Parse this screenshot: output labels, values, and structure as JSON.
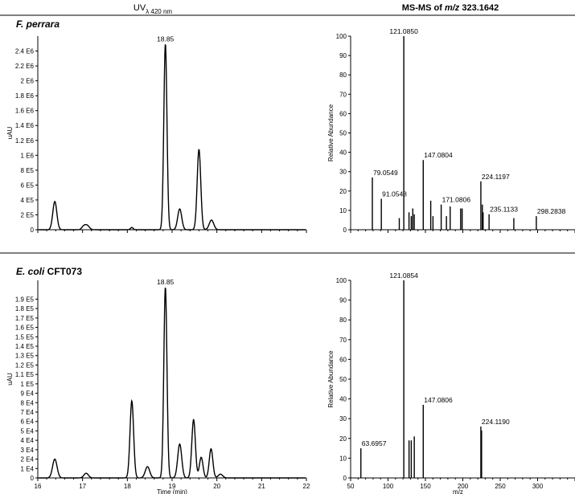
{
  "headers": {
    "uv_main": "UV",
    "uv_sub": "λ 420 nm",
    "ms_prefix": "MS-MS of ",
    "ms_mz": "m/z",
    "ms_value": " 323.1642"
  },
  "panels": [
    {
      "organism_italic": "F. perrara",
      "organism_plain": ""
    },
    {
      "organism_italic": "E. coli",
      "organism_plain": " CFT073"
    }
  ],
  "chart_data": [
    {
      "id": "uv_top",
      "type": "line",
      "ylabel": "uAU",
      "xlabel": "",
      "xlim": [
        16,
        22
      ],
      "ylim": [
        0,
        2600000.0
      ],
      "y_ticks": [
        {
          "v": 0,
          "label": "0"
        },
        {
          "v": 200000,
          "label": "2 E5"
        },
        {
          "v": 400000,
          "label": "4 E5"
        },
        {
          "v": 600000,
          "label": "6 E5"
        },
        {
          "v": 800000,
          "label": "8 E5"
        },
        {
          "v": 1000000,
          "label": "1 E6"
        },
        {
          "v": 1200000,
          "label": "1.2 E6"
        },
        {
          "v": 1400000,
          "label": "1.4 E6"
        },
        {
          "v": 1600000,
          "label": "1.6 E6"
        },
        {
          "v": 1800000,
          "label": "1.8 E6"
        },
        {
          "v": 2000000,
          "label": "2 E6"
        },
        {
          "v": 2200000,
          "label": "2.2 E6"
        },
        {
          "v": 2400000,
          "label": "2.4 E6"
        }
      ],
      "x_ticks": [],
      "peaks": [
        {
          "rt": 16.38,
          "height": 380000,
          "width": 0.045
        },
        {
          "rt": 17.02,
          "height": 40000,
          "width": 0.04
        },
        {
          "rt": 17.1,
          "height": 60000,
          "width": 0.05
        },
        {
          "rt": 18.1,
          "height": 30000,
          "width": 0.03
        },
        {
          "rt": 18.85,
          "height": 2500000,
          "width": 0.035
        },
        {
          "rt": 19.17,
          "height": 280000,
          "width": 0.045
        },
        {
          "rt": 19.6,
          "height": 1080000,
          "width": 0.04
        },
        {
          "rt": 19.88,
          "height": 130000,
          "width": 0.05
        }
      ],
      "peak_labels": [
        {
          "x": 18.85,
          "y": 2500000,
          "label": "18.85"
        }
      ]
    },
    {
      "id": "ms_top",
      "type": "bar",
      "ylabel": "Relative Abundance",
      "xlabel": "",
      "xlim": [
        50,
        350
      ],
      "ylim": [
        0,
        100
      ],
      "y_ticks": [
        {
          "v": 0,
          "label": "0"
        },
        {
          "v": 10,
          "label": "10"
        },
        {
          "v": 20,
          "label": "20"
        },
        {
          "v": 30,
          "label": "30"
        },
        {
          "v": 40,
          "label": "40"
        },
        {
          "v": 50,
          "label": "50"
        },
        {
          "v": 60,
          "label": "60"
        },
        {
          "v": 70,
          "label": "70"
        },
        {
          "v": 80,
          "label": "80"
        },
        {
          "v": 90,
          "label": "90"
        },
        {
          "v": 100,
          "label": "100"
        }
      ],
      "x_ticks": [],
      "peaks": [
        {
          "mz": 79.05,
          "int": 27
        },
        {
          "mz": 91.05,
          "int": 16
        },
        {
          "mz": 115.05,
          "int": 6
        },
        {
          "mz": 121.09,
          "int": 100
        },
        {
          "mz": 128.06,
          "int": 9
        },
        {
          "mz": 131.07,
          "int": 7
        },
        {
          "mz": 133.1,
          "int": 11
        },
        {
          "mz": 135.08,
          "int": 8
        },
        {
          "mz": 147.08,
          "int": 36
        },
        {
          "mz": 157.1,
          "int": 15
        },
        {
          "mz": 160.1,
          "int": 7
        },
        {
          "mz": 171.08,
          "int": 13
        },
        {
          "mz": 178.1,
          "int": 7
        },
        {
          "mz": 183.1,
          "int": 12
        },
        {
          "mz": 197.1,
          "int": 11
        },
        {
          "mz": 199.1,
          "int": 11
        },
        {
          "mz": 224.12,
          "int": 25
        },
        {
          "mz": 226.1,
          "int": 13
        },
        {
          "mz": 227.1,
          "int": 9
        },
        {
          "mz": 235.11,
          "int": 8
        },
        {
          "mz": 268.2,
          "int": 6
        },
        {
          "mz": 298.28,
          "int": 7
        }
      ],
      "peak_labels": [
        {
          "x": 121.09,
          "y": 100,
          "label": "121.0850"
        },
        {
          "x": 79.05,
          "y": 27,
          "label": "79.0549"
        },
        {
          "x": 91.05,
          "y": 16,
          "label": "91.0548"
        },
        {
          "x": 147.08,
          "y": 36,
          "label": "147.0804"
        },
        {
          "x": 171.08,
          "y": 13,
          "label": "171.0806"
        },
        {
          "x": 224.12,
          "y": 25,
          "label": "224.1197"
        },
        {
          "x": 235.11,
          "y": 8,
          "label": "235.1133"
        },
        {
          "x": 298.28,
          "y": 7,
          "label": "298.2838"
        }
      ]
    },
    {
      "id": "uv_bottom",
      "type": "line",
      "ylabel": "uAU",
      "xlabel": "Time (min)",
      "xlim": [
        16,
        22
      ],
      "ylim": [
        0,
        210000
      ],
      "y_ticks": [
        {
          "v": 0,
          "label": "0"
        },
        {
          "v": 10000,
          "label": "1 E4"
        },
        {
          "v": 20000,
          "label": "2 E4"
        },
        {
          "v": 30000,
          "label": "3 E4"
        },
        {
          "v": 40000,
          "label": "4 E4"
        },
        {
          "v": 50000,
          "label": "5 E4"
        },
        {
          "v": 60000,
          "label": "6 E4"
        },
        {
          "v": 70000,
          "label": "7 E4"
        },
        {
          "v": 80000,
          "label": "8 E4"
        },
        {
          "v": 90000,
          "label": "9 E4"
        },
        {
          "v": 100000,
          "label": "1 E5"
        },
        {
          "v": 110000,
          "label": "1.1 E5"
        },
        {
          "v": 120000,
          "label": "1.2 E5"
        },
        {
          "v": 130000,
          "label": "1.3 E5"
        },
        {
          "v": 140000,
          "label": "1.4 E5"
        },
        {
          "v": 150000,
          "label": "1.5 E5"
        },
        {
          "v": 160000,
          "label": "1.6 E5"
        },
        {
          "v": 170000,
          "label": "1.7 E5"
        },
        {
          "v": 180000,
          "label": "1.8 E5"
        },
        {
          "v": 190000,
          "label": "1.9 E5"
        }
      ],
      "x_ticks": [
        {
          "v": 16,
          "label": "16"
        },
        {
          "v": 17,
          "label": "17"
        },
        {
          "v": 18,
          "label": "18"
        },
        {
          "v": 19,
          "label": "19"
        },
        {
          "v": 20,
          "label": "20"
        },
        {
          "v": 21,
          "label": "21"
        },
        {
          "v": 22,
          "label": "22"
        }
      ],
      "peaks": [
        {
          "rt": 16.38,
          "height": 20000,
          "width": 0.05
        },
        {
          "rt": 17.08,
          "height": 5000,
          "width": 0.05
        },
        {
          "rt": 18.1,
          "height": 82000,
          "width": 0.04
        },
        {
          "rt": 18.45,
          "height": 12000,
          "width": 0.05
        },
        {
          "rt": 18.85,
          "height": 203000,
          "width": 0.035
        },
        {
          "rt": 19.17,
          "height": 36000,
          "width": 0.045
        },
        {
          "rt": 19.48,
          "height": 62000,
          "width": 0.04
        },
        {
          "rt": 19.65,
          "height": 22000,
          "width": 0.04
        },
        {
          "rt": 19.87,
          "height": 31000,
          "width": 0.04
        },
        {
          "rt": 20.08,
          "height": 4000,
          "width": 0.05
        }
      ],
      "peak_labels": [
        {
          "x": 18.85,
          "y": 203000,
          "label": "18.85"
        }
      ]
    },
    {
      "id": "ms_bottom",
      "type": "bar",
      "ylabel": "Relative Abundance",
      "xlabel": "m/z",
      "xlim": [
        50,
        350
      ],
      "ylim": [
        0,
        100
      ],
      "y_ticks": [
        {
          "v": 0,
          "label": "0"
        },
        {
          "v": 10,
          "label": "10"
        },
        {
          "v": 20,
          "label": "20"
        },
        {
          "v": 30,
          "label": "30"
        },
        {
          "v": 40,
          "label": "40"
        },
        {
          "v": 50,
          "label": "50"
        },
        {
          "v": 60,
          "label": "60"
        },
        {
          "v": 70,
          "label": "70"
        },
        {
          "v": 80,
          "label": "80"
        },
        {
          "v": 90,
          "label": "90"
        },
        {
          "v": 100,
          "label": "100"
        }
      ],
      "x_ticks": [
        {
          "v": 50,
          "label": "50"
        },
        {
          "v": 100,
          "label": "100"
        },
        {
          "v": 150,
          "label": "150"
        },
        {
          "v": 200,
          "label": "200"
        },
        {
          "v": 250,
          "label": "250"
        },
        {
          "v": 300,
          "label": "300"
        }
      ],
      "peaks": [
        {
          "mz": 63.7,
          "int": 15
        },
        {
          "mz": 121.09,
          "int": 100
        },
        {
          "mz": 128.1,
          "int": 19
        },
        {
          "mz": 131.1,
          "int": 19
        },
        {
          "mz": 135.1,
          "int": 21
        },
        {
          "mz": 147.08,
          "int": 37
        },
        {
          "mz": 224.12,
          "int": 26
        },
        {
          "mz": 225.1,
          "int": 24
        }
      ],
      "peak_labels": [
        {
          "x": 121.09,
          "y": 100,
          "label": "121.0854"
        },
        {
          "x": 147.08,
          "y": 37,
          "label": "147.0806"
        },
        {
          "x": 224.12,
          "y": 26,
          "label": "224.1190"
        },
        {
          "x": 63.7,
          "y": 15,
          "label": "63.6957"
        }
      ]
    }
  ]
}
